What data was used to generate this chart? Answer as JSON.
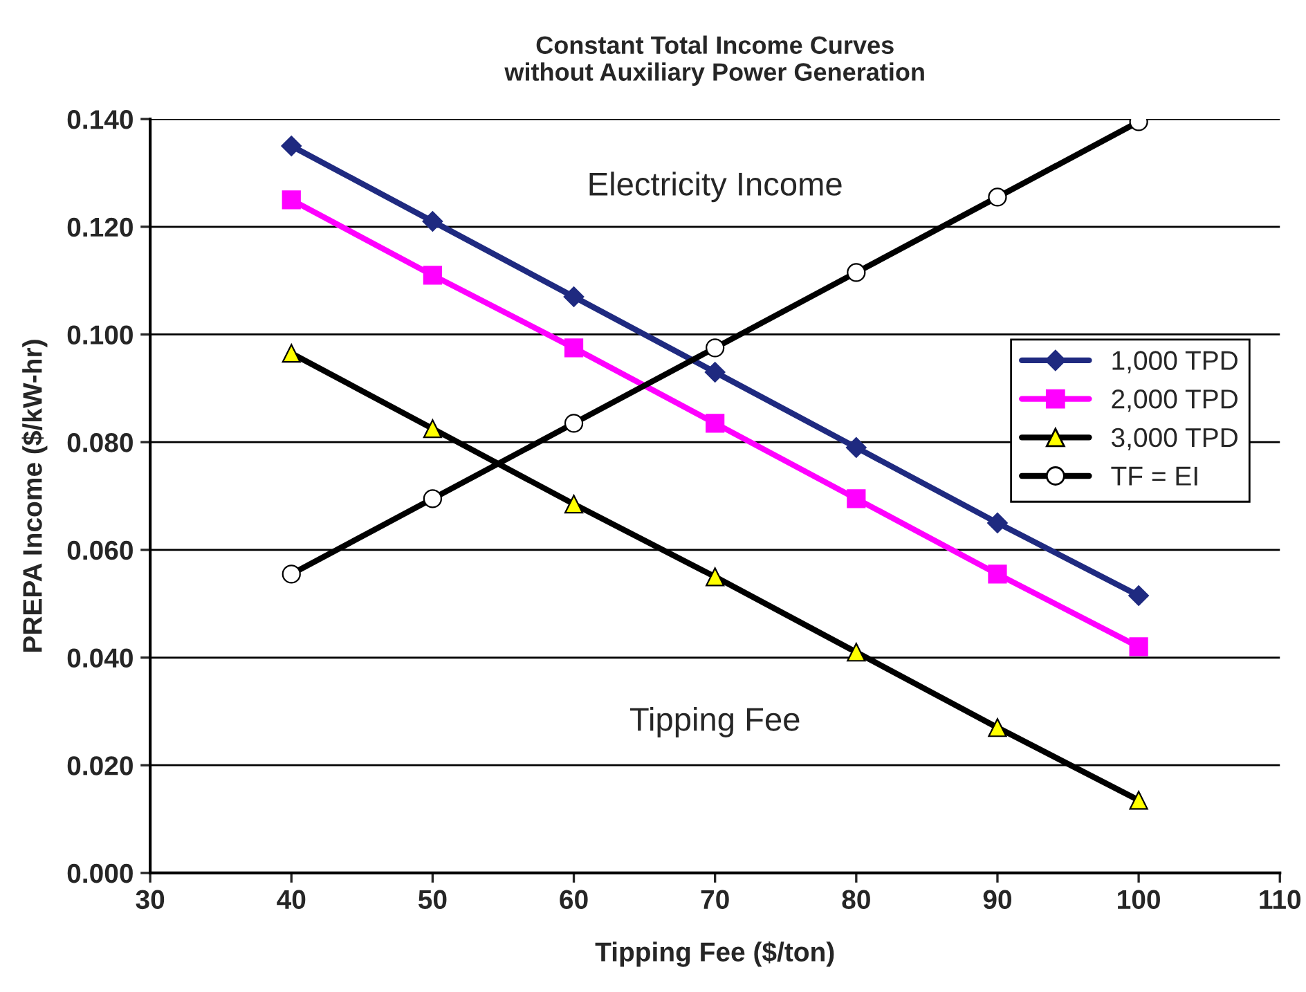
{
  "chart_data": {
    "type": "line",
    "title": "Constant Total Income Curves\nwithout Auxiliary Power Generation",
    "xlabel": "Tipping Fee ($/ton)",
    "ylabel": "PREPA Income ($/kW-hr)",
    "x": [
      40,
      50,
      60,
      70,
      80,
      90,
      100
    ],
    "series": [
      {
        "name": "1,000 TPD",
        "color": "#1f2a80",
        "marker": "diamond",
        "colors": [
          "#1f2a80",
          "#1f2a80",
          "#1f2a80",
          "#1f2a80",
          "#1f2a80",
          "#1f2a80",
          "#1f2a80"
        ],
        "values": [
          0.135,
          0.121,
          0.107,
          0.093,
          0.079,
          0.065,
          0.0515
        ]
      },
      {
        "name": "2,000 TPD",
        "color": "#ff00ff",
        "marker": "square",
        "colors": [
          "#ff00ff",
          "#ff00ff",
          "#ff00ff",
          "#ff00ff",
          "#ff00ff",
          "#ff00ff",
          "#ff00ff"
        ],
        "values": [
          0.125,
          0.111,
          0.0975,
          0.0835,
          0.0695,
          0.0555,
          0.042
        ]
      },
      {
        "name": "3,000 TPD",
        "color": "#000000",
        "marker": "triangle",
        "colors": [
          "#ffff00",
          "#ffff00",
          "#ffff00",
          "#ffff00",
          "#ffff00",
          "#ffff00",
          "#ffff00"
        ],
        "values": [
          0.0965,
          0.0825,
          0.0685,
          0.055,
          0.041,
          0.027,
          0.0135
        ]
      },
      {
        "name": "TF = EI",
        "color": "#000000",
        "marker": "circle",
        "colors": [
          "#ffffff",
          "#ffffff",
          "#ffffff",
          "#ffffff",
          "#ffffff",
          "#ffffff",
          "#ffffff"
        ],
        "values": [
          0.0555,
          0.0695,
          0.0835,
          0.0975,
          0.1115,
          0.1255,
          0.1395
        ]
      }
    ],
    "annotations": [
      "Electricity Income",
      "Tipping Fee"
    ],
    "xlim": [
      30,
      110
    ],
    "xticks": [
      30,
      40,
      50,
      60,
      70,
      80,
      90,
      100,
      110
    ],
    "ylim": [
      0,
      0.14
    ],
    "yticks": [
      {
        "value": 0,
        "label": "0.000"
      },
      {
        "value": 0.02,
        "label": "0.020"
      },
      {
        "value": 0.04,
        "label": "0.040"
      },
      {
        "value": 0.06,
        "label": "0.060"
      },
      {
        "value": 0.08,
        "label": "0.080"
      },
      {
        "value": 0.1,
        "label": "0.100"
      },
      {
        "value": 0.12,
        "label": "0.120"
      },
      {
        "value": 0.14,
        "label": "0.140"
      }
    ],
    "grid": "y",
    "legend": "right",
    "line_style": "solid"
  }
}
